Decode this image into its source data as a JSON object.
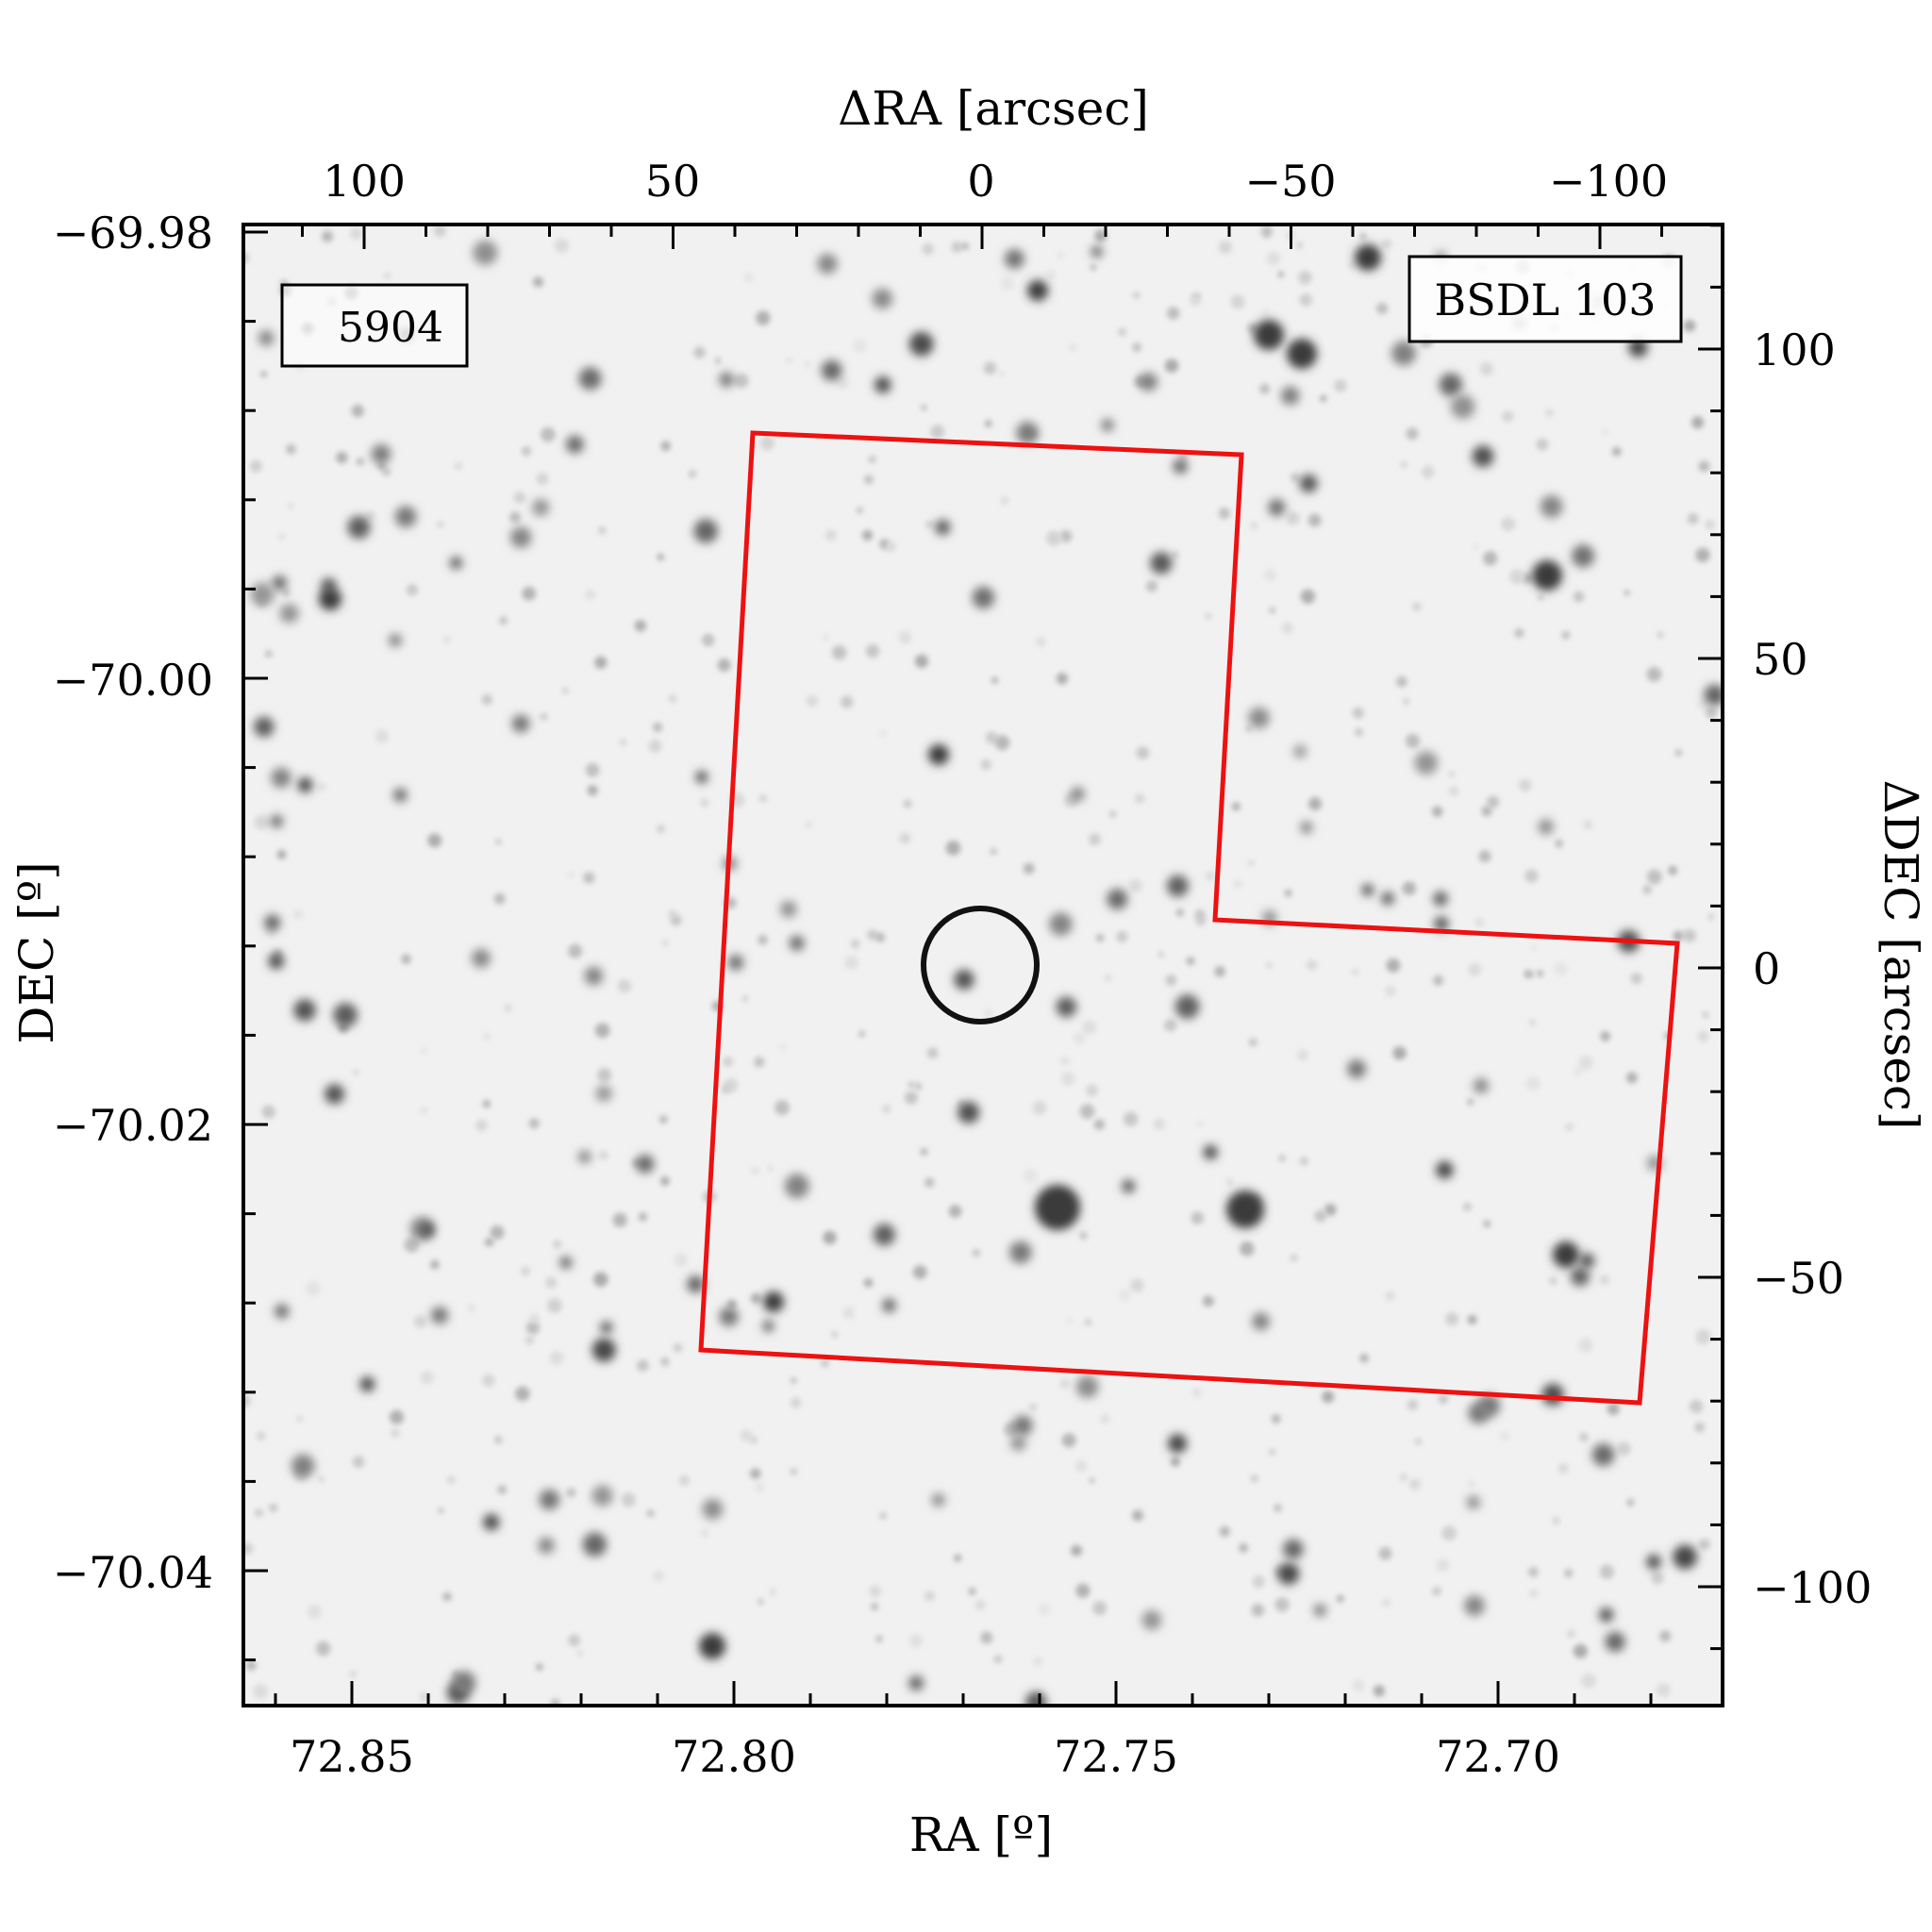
{
  "figure": {
    "top_axis_label": "ΔRA [arcsec]",
    "bottom_axis_label": "RA [º]",
    "left_axis_label": "DEC [º]",
    "right_axis_label": "ΔDEC [arcsec]",
    "top_ticks": [
      "100",
      "50",
      "0",
      "−50",
      "−100"
    ],
    "bottom_ticks": [
      "72.85",
      "72.80",
      "72.75",
      "72.70"
    ],
    "left_ticks": [
      "−69.98",
      "−70.00",
      "−70.02",
      "−70.04"
    ],
    "right_ticks": [
      "100",
      "50",
      "0",
      "−50",
      "−100"
    ],
    "id_label": "5904",
    "name_label": "BSDL 103",
    "colors": {
      "footprint": "#ee1111",
      "id_label": "#ee1111",
      "circle": "#111111",
      "sky_background": "#f1f1f1"
    }
  }
}
